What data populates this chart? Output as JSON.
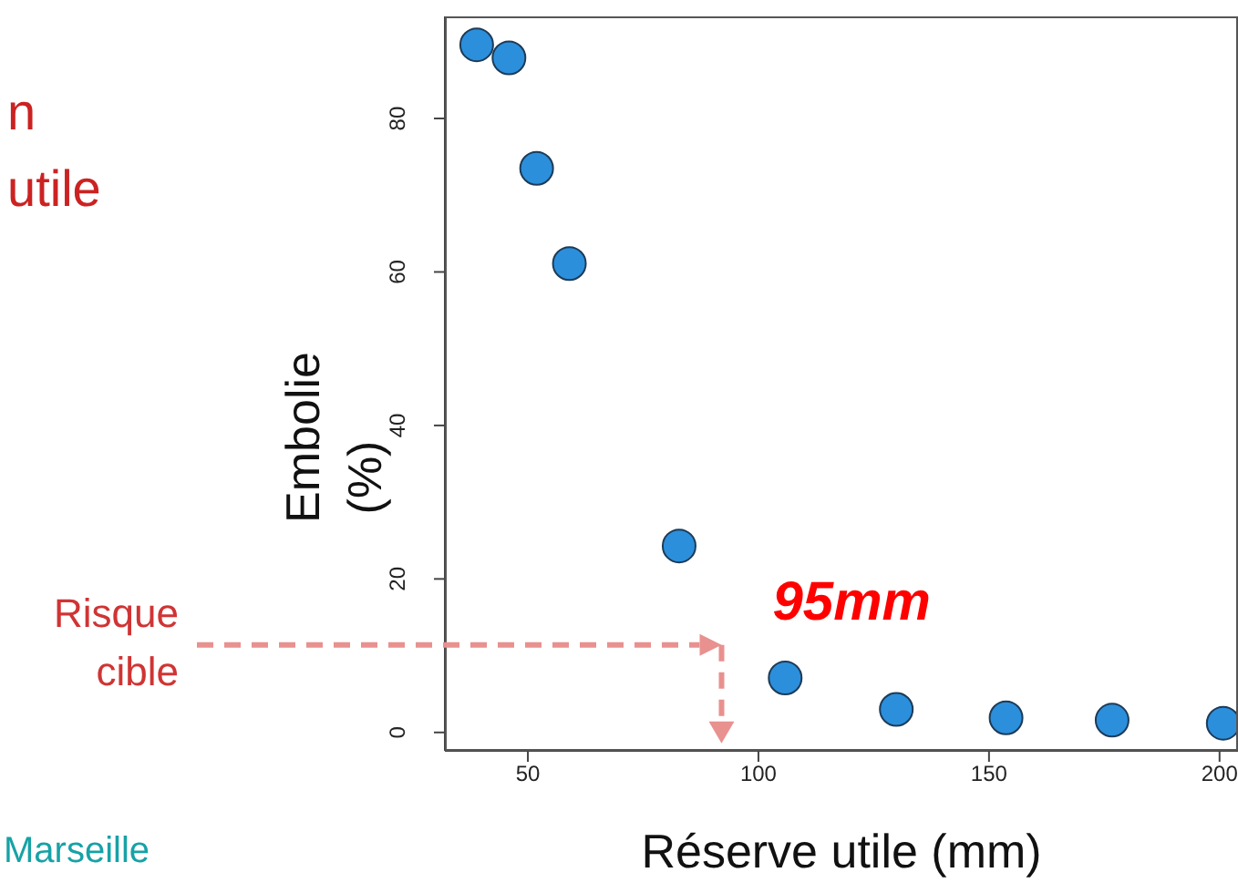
{
  "chart_data": {
    "type": "scatter",
    "xlabel": "Réserve utile (mm)",
    "ylabel": "Embolie\n(%)",
    "x": [
      38.9,
      45.9,
      51.9,
      59.0,
      82.8,
      105.8,
      129.9,
      153.7,
      176.7,
      200.8
    ],
    "series": [
      {
        "color": "#2b8fdc",
        "values": [
          89.6,
          87.9,
          73.5,
          61.1,
          24.3,
          7.1,
          3.0,
          1.9,
          1.6,
          1.2
        ]
      }
    ],
    "xlim": [
      32,
      204
    ],
    "xticks": [
      50,
      100,
      150,
      200
    ],
    "ylim": [
      -2.4,
      93.3
    ],
    "yticks": [
      0,
      20,
      40,
      60,
      80
    ],
    "marker": "circle",
    "ref_lines": [
      {
        "axis": "y",
        "value": 11.4,
        "label": "Risque cible",
        "color": "#e8918f",
        "line_style": "dashed"
      },
      {
        "axis": "x",
        "value": 92,
        "label": "95mm",
        "color": "#e8918f",
        "line_style": "dashed"
      }
    ],
    "annotations": [
      "n",
      "utile",
      "Marseille"
    ]
  }
}
